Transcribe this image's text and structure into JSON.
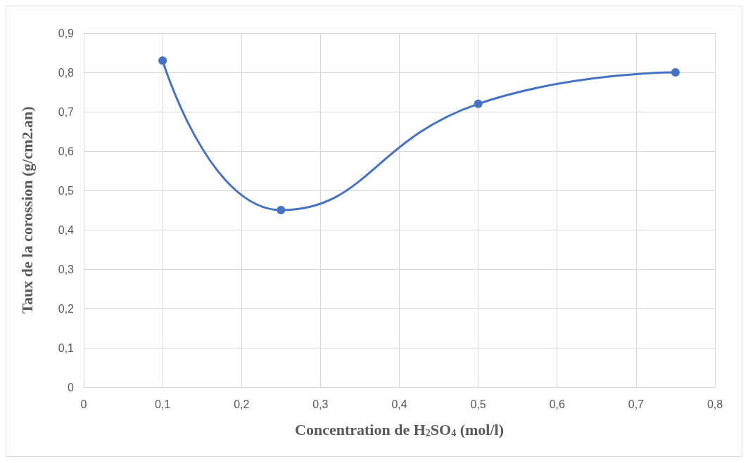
{
  "chart_data": {
    "type": "line",
    "xlabel": "Concentration de H$_{2}$SO$_{4}$ (mol/l)",
    "ylabel": "Taux de la corossion (g/cm2.an)",
    "x": [
      0.1,
      0.25,
      0.5,
      0.75
    ],
    "series": [
      {
        "color": "#4472c4",
        "values": [
          0.83,
          0.45,
          0.72,
          0.8
        ]
      }
    ],
    "xlim": [
      0,
      0.8
    ],
    "xticks": [
      {
        "value": 0,
        "label": "0"
      },
      {
        "value": 0.1,
        "label": "0,1"
      },
      {
        "value": 0.2,
        "label": "0,2"
      },
      {
        "value": 0.3,
        "label": "0,3"
      },
      {
        "value": 0.4,
        "label": "0,4"
      },
      {
        "value": 0.5,
        "label": "0,5"
      },
      {
        "value": 0.6,
        "label": "0,6"
      },
      {
        "value": 0.7,
        "label": "0,7"
      },
      {
        "value": 0.8,
        "label": "0,8"
      }
    ],
    "ylim": [
      0,
      0.9
    ],
    "yticks": [
      {
        "value": 0,
        "label": "0"
      },
      {
        "value": 0.1,
        "label": "0,1"
      },
      {
        "value": 0.2,
        "label": "0,2"
      },
      {
        "value": 0.3,
        "label": "0,3"
      },
      {
        "value": 0.4,
        "label": "0,4"
      },
      {
        "value": 0.5,
        "label": "0,5"
      },
      {
        "value": 0.6,
        "label": "0,6"
      },
      {
        "value": 0.7,
        "label": "0,7"
      },
      {
        "value": 0.8,
        "label": "0,8"
      },
      {
        "value": 0.9,
        "label": "0,9"
      }
    ],
    "grid": true,
    "marker": "circle",
    "line_style": "solid"
  }
}
